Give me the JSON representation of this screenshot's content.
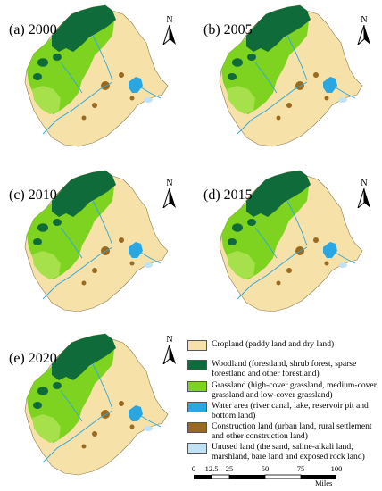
{
  "panels": [
    {
      "label": "(a) 2000"
    },
    {
      "label": "(b) 2005"
    },
    {
      "label": "(c) 2010"
    },
    {
      "label": "(d) 2015"
    },
    {
      "label": "(e) 2020"
    }
  ],
  "north_arrow": {
    "letter": "N"
  },
  "legend": {
    "items": [
      {
        "text": "Cropland (paddy land and dry land)",
        "color": "#f6e1a9"
      },
      {
        "text": "Woodland (forestland, shrub forest, sparse forestland and other forestland)",
        "color": "#0f6b3a"
      },
      {
        "text": "Grassland (high-cover grassland, medium-cover grassland and low-cover grassland)",
        "color": "#7ed321"
      },
      {
        "text": "Water area (river canal, lake, reservoir pit and bottom land)",
        "color": "#2aa6e0"
      },
      {
        "text": "Construction land (urban land, rural settlement and other construction land)",
        "color": "#9a6a1f"
      },
      {
        "text": "Unused land (the sand, saline-alkali land, marshland, bare land and exposed rock land)",
        "color": "#bfe3f5"
      }
    ]
  },
  "scale_bar": {
    "ticks": [
      "0",
      "12.5",
      "25",
      "50",
      "75",
      "100"
    ],
    "unit": "Miles"
  },
  "colors": {
    "cropland": "#f6e1a9",
    "woodland": "#0f6b3a",
    "grassland": "#7ed321",
    "grassland_light": "#a6e04a",
    "water": "#2aa6e0",
    "construction": "#9a6a1f",
    "unused": "#bfe3f5"
  }
}
